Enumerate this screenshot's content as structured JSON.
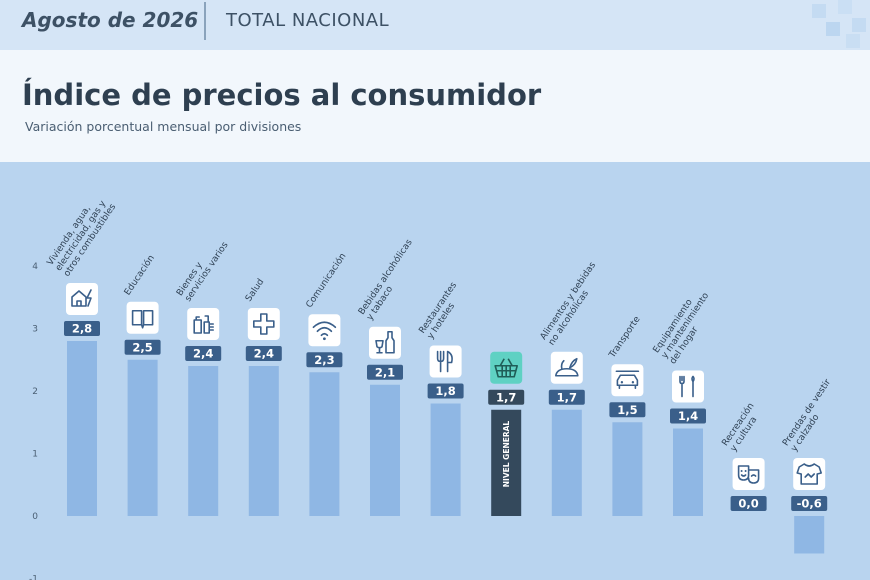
{
  "header": {
    "period": "Agosto de 2026",
    "scope": "TOTAL NACIONAL"
  },
  "title": "Índice de precios al consumidor",
  "subtitle": "Variación porcentual mensual por divisiones",
  "colors": {
    "bar": "#8fb7e4",
    "highlight_bar": "#34495c",
    "label_bg": "#3a5f8a",
    "background": "#b9d4ef",
    "highlight_icon_bg": "#5fd1c3"
  },
  "chart_data": {
    "type": "bar",
    "categories": [
      [
        "Vivienda, agua,",
        "electricidad, gas y",
        "otros combustibles"
      ],
      [
        "Educación"
      ],
      [
        "Bienes y",
        "servicios varios"
      ],
      [
        "Salud"
      ],
      [
        "Comunicación"
      ],
      [
        "Bebidas alcohólicas",
        "y tabaco"
      ],
      [
        "Restaurantes",
        "y hoteles"
      ],
      [
        "NIVEL GENERAL"
      ],
      [
        "Alimentos y bebidas",
        "no alcohólicas"
      ],
      [
        "Transporte"
      ],
      [
        "Equipamiento",
        "y mantenimiento",
        "del hogar"
      ],
      [
        "Recreación",
        "y cultura"
      ],
      [
        "Prendas de vestir",
        "y calzado"
      ]
    ],
    "values": [
      2.8,
      2.5,
      2.4,
      2.4,
      2.3,
      2.1,
      1.8,
      1.7,
      1.7,
      1.5,
      1.4,
      0.0,
      -0.6
    ],
    "value_labels": [
      "2,8",
      "2,5",
      "2,4",
      "2,4",
      "2,3",
      "2,1",
      "1,8",
      "1,7",
      "1,7",
      "1,5",
      "1,4",
      "0,0",
      "-0,6"
    ],
    "icons": [
      "house-lightning-icon",
      "book-icon",
      "toiletries-icon",
      "health-cross-icon",
      "wifi-icon",
      "bottle-glass-icon",
      "fork-knife-icon",
      "basket-icon",
      "food-icon",
      "car-icon",
      "tools-icon",
      "masks-icon",
      "shirt-icon"
    ],
    "highlight_index": 7,
    "y_ticks": [
      "4",
      "3",
      "2",
      "1",
      "0",
      "-1"
    ],
    "ylim": [
      -1,
      4
    ],
    "grid": false
  }
}
